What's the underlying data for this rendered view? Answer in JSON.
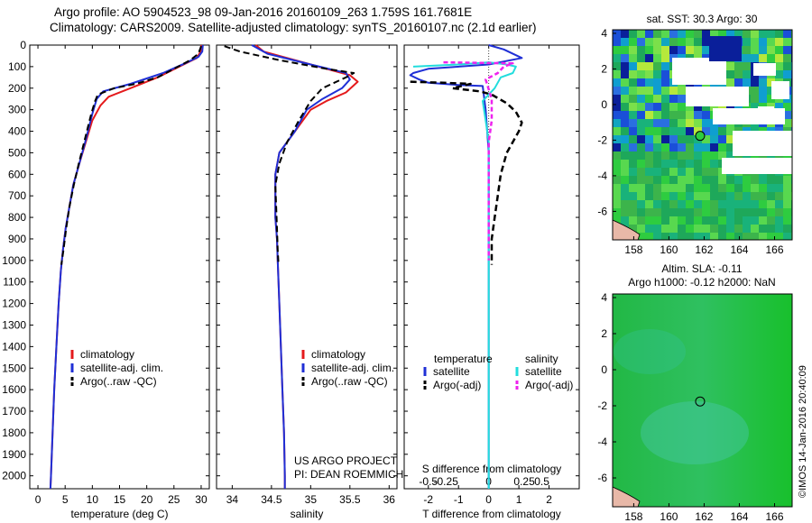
{
  "header": {
    "line1": "Argo profile: AO 5904523_98 09-Jan-2016 20160109_263 1.759S 161.7681E",
    "line2": "Climatology: CARS2009. Satellite-adjusted climatology: synTS_20160107.nc (2.1d earlier)"
  },
  "colors": {
    "climatology": "#e41a1c",
    "satellite": "#1f2fd6",
    "argo": "#000000",
    "sal_sat": "#22dddd",
    "sal_argo": "#ee22ee"
  },
  "depth_axis": {
    "ticks": [
      0,
      100,
      200,
      300,
      400,
      500,
      600,
      700,
      800,
      900,
      1000,
      1100,
      1200,
      1300,
      1400,
      1500,
      1600,
      1700,
      1800,
      1900,
      2000
    ]
  },
  "chart_data": [
    {
      "type": "line",
      "id": "temperature",
      "xlabel": "temperature (deg C)",
      "xlim": [
        -1.5,
        31.5
      ],
      "ylim": [
        0,
        2060
      ],
      "xticks": [
        0,
        5,
        10,
        15,
        20,
        25,
        30
      ],
      "legend": [
        "climatology",
        "satellite-adj. clim.",
        "Argo(..raw -QC)"
      ],
      "series": [
        {
          "name": "climatology",
          "points": [
            [
              30,
              0
            ],
            [
              29.9,
              30
            ],
            [
              29.2,
              60
            ],
            [
              26,
              100
            ],
            [
              22,
              150
            ],
            [
              17,
              200
            ],
            [
              13,
              240
            ],
            [
              11.5,
              280
            ],
            [
              10,
              350
            ],
            [
              8.8,
              450
            ],
            [
              7.6,
              550
            ],
            [
              6.5,
              650
            ],
            [
              5.8,
              750
            ],
            [
              5.1,
              850
            ],
            [
              4.6,
              950
            ],
            [
              4.2,
              1050
            ],
            [
              3.8,
              1200
            ],
            [
              3.4,
              1400
            ],
            [
              3,
              1600
            ],
            [
              2.7,
              1800
            ],
            [
              2.4,
              2000
            ],
            [
              2.3,
              2060
            ]
          ]
        },
        {
          "name": "satellite-adj. clim.",
          "points": [
            [
              30.3,
              0
            ],
            [
              30.2,
              30
            ],
            [
              29.5,
              55
            ],
            [
              27,
              85
            ],
            [
              23,
              130
            ],
            [
              17,
              180
            ],
            [
              12,
              215
            ],
            [
              10.8,
              250
            ],
            [
              10,
              320
            ],
            [
              8.8,
              440
            ],
            [
              7.6,
              550
            ],
            [
              6.5,
              650
            ],
            [
              5.8,
              750
            ],
            [
              5.1,
              850
            ],
            [
              4.6,
              950
            ],
            [
              4.2,
              1050
            ],
            [
              3.8,
              1200
            ],
            [
              3.4,
              1400
            ],
            [
              3,
              1600
            ],
            [
              2.7,
              1800
            ],
            [
              2.4,
              2000
            ],
            [
              2.3,
              2060
            ]
          ]
        },
        {
          "name": "Argo(..raw -QC)",
          "points": [
            [
              30,
              5
            ],
            [
              29.5,
              40
            ],
            [
              28,
              70
            ],
            [
              25,
              110
            ],
            [
              22,
              150
            ],
            [
              18,
              180
            ],
            [
              14,
              200
            ],
            [
              11,
              230
            ],
            [
              10.5,
              260
            ],
            [
              9.8,
              320
            ],
            [
              9,
              400
            ],
            [
              8.5,
              450
            ],
            [
              7.5,
              550
            ],
            [
              6.6,
              650
            ],
            [
              5.8,
              750
            ],
            [
              5.2,
              850
            ],
            [
              4.7,
              950
            ],
            [
              4.3,
              1020
            ]
          ]
        }
      ]
    },
    {
      "type": "line",
      "id": "salinity",
      "xlabel": "salinity",
      "xlim": [
        33.8,
        36.1
      ],
      "ylim": [
        0,
        2060
      ],
      "xticks": [
        34,
        34.5,
        35,
        35.5,
        36
      ],
      "legend": [
        "climatology",
        "satellite-adj. clim.",
        "Argo(..raw -QC)"
      ],
      "series": [
        {
          "name": "climatology",
          "points": [
            [
              34.3,
              0
            ],
            [
              34.4,
              30
            ],
            [
              34.9,
              80
            ],
            [
              35.5,
              140
            ],
            [
              35.6,
              170
            ],
            [
              35.45,
              220
            ],
            [
              35.2,
              260
            ],
            [
              35,
              300
            ],
            [
              34.8,
              400
            ],
            [
              34.6,
              500
            ],
            [
              34.55,
              600
            ],
            [
              34.55,
              700
            ],
            [
              34.55,
              800
            ],
            [
              34.57,
              900
            ],
            [
              34.58,
              1000
            ],
            [
              34.6,
              1200
            ],
            [
              34.62,
              1400
            ],
            [
              34.64,
              1600
            ],
            [
              34.66,
              1800
            ],
            [
              34.67,
              2000
            ],
            [
              34.67,
              2060
            ]
          ]
        },
        {
          "name": "satellite-adj. clim.",
          "points": [
            [
              34.25,
              0
            ],
            [
              34.45,
              40
            ],
            [
              35,
              90
            ],
            [
              35.45,
              130
            ],
            [
              35.5,
              160
            ],
            [
              35.4,
              200
            ],
            [
              35.15,
              250
            ],
            [
              34.95,
              300
            ],
            [
              34.8,
              400
            ],
            [
              34.6,
              500
            ],
            [
              34.55,
              600
            ],
            [
              34.55,
              700
            ],
            [
              34.55,
              800
            ],
            [
              34.57,
              900
            ],
            [
              34.58,
              1000
            ],
            [
              34.6,
              1200
            ],
            [
              34.62,
              1400
            ],
            [
              34.64,
              1600
            ],
            [
              34.66,
              1800
            ],
            [
              34.67,
              2000
            ],
            [
              34.67,
              2060
            ]
          ]
        },
        {
          "name": "Argo(..raw -QC)",
          "points": [
            [
              33.9,
              5
            ],
            [
              34.1,
              30
            ],
            [
              34.6,
              70
            ],
            [
              35.2,
              110
            ],
            [
              35.55,
              130
            ],
            [
              35.45,
              150
            ],
            [
              35.15,
              200
            ],
            [
              35,
              260
            ],
            [
              34.85,
              350
            ],
            [
              34.7,
              450
            ],
            [
              34.6,
              550
            ],
            [
              34.55,
              650
            ],
            [
              34.56,
              750
            ],
            [
              34.57,
              850
            ],
            [
              34.58,
              950
            ],
            [
              34.59,
              1020
            ]
          ]
        }
      ]
    },
    {
      "type": "line",
      "id": "differences",
      "xlabel": "T difference from climatology",
      "xlabel_top": "S difference from climatology",
      "xlim": [
        -2.8,
        3
      ],
      "ylim": [
        0,
        2060
      ],
      "xticks": [
        -2,
        -1,
        0,
        1,
        2
      ],
      "xticks_S": [
        "-0.5",
        "-0.25",
        "0",
        "0.25",
        "0.5"
      ],
      "legend_titles": [
        "temperature",
        "salinity"
      ],
      "legend": [
        "satellite",
        "Argo(-adj)",
        "satellite",
        "Argo(-adj)"
      ],
      "series": [
        {
          "name": "T satellite",
          "points": [
            [
              0,
              0
            ],
            [
              0.5,
              20
            ],
            [
              1.1,
              60
            ],
            [
              0,
              90
            ],
            [
              -2,
              110
            ],
            [
              -2.5,
              130
            ],
            [
              -2.6,
              140
            ],
            [
              -2.3,
              160
            ],
            [
              -2,
              175
            ],
            [
              -1,
              185
            ],
            [
              -0.2,
              190
            ],
            [
              -0.1,
              300
            ],
            [
              0,
              500
            ],
            [
              0,
              800
            ],
            [
              0,
              1200
            ],
            [
              0,
              1600
            ],
            [
              0,
              2060
            ]
          ]
        },
        {
          "name": "T Argo(-adj)",
          "points": [
            [
              -2.6,
              170
            ],
            [
              -1.5,
              175
            ],
            [
              -0.6,
              180
            ],
            [
              -1.2,
              200
            ],
            [
              -0.3,
              215
            ],
            [
              0.1,
              230
            ],
            [
              0.6,
              270
            ],
            [
              0.9,
              310
            ],
            [
              1.1,
              360
            ],
            [
              1.0,
              400
            ],
            [
              0.8,
              450
            ],
            [
              0.6,
              500
            ],
            [
              0.4,
              600
            ],
            [
              0.3,
              700
            ],
            [
              0.2,
              800
            ],
            [
              0.1,
              900
            ],
            [
              0.1,
              1020
            ]
          ]
        },
        {
          "name": "S satellite",
          "points": [
            [
              -2.5,
              100
            ],
            [
              -1,
              90
            ],
            [
              0,
              80
            ],
            [
              0.6,
              90
            ],
            [
              0.9,
              100
            ],
            [
              0.8,
              130
            ],
            [
              0.4,
              150
            ],
            [
              0.2,
              200
            ],
            [
              -0.2,
              260
            ],
            [
              -0.1,
              350
            ],
            [
              0,
              450
            ],
            [
              0,
              600
            ],
            [
              0,
              900
            ],
            [
              0,
              1300
            ],
            [
              0,
              1700
            ],
            [
              0,
              2060
            ]
          ]
        },
        {
          "name": "S Argo(-adj)",
          "points": [
            [
              -1.5,
              80
            ],
            [
              0.8,
              85
            ],
            [
              0.5,
              100
            ],
            [
              0.3,
              130
            ],
            [
              -0.1,
              160
            ],
            [
              0.1,
              250
            ],
            [
              0.1,
              350
            ],
            [
              0,
              450
            ],
            [
              0,
              600
            ],
            [
              0,
              800
            ],
            [
              0,
              1000
            ]
          ]
        }
      ]
    },
    {
      "type": "heatmap",
      "id": "sst-map",
      "title": "sat. SST: 30.3 Argo: 30",
      "xlim": [
        156.8,
        167
      ],
      "ylim": [
        -7.6,
        4.2
      ],
      "xticks": [
        158,
        160,
        162,
        164,
        166
      ],
      "yticks": [
        4,
        2,
        0,
        -2,
        -4,
        -6
      ],
      "argo_location": [
        161.77,
        -1.76
      ]
    },
    {
      "type": "heatmap",
      "id": "sla-map",
      "title_line1": "Altim. SLA: -0.11",
      "title_line2": "Argo h1000: -0.12 h2000: NaN",
      "xlim": [
        156.8,
        167
      ],
      "ylim": [
        -7.6,
        4.2
      ],
      "xticks": [
        158,
        160,
        162,
        164,
        166
      ],
      "yticks": [
        4,
        2,
        0,
        -2,
        -4,
        -6
      ],
      "argo_location": [
        161.77,
        -1.76
      ]
    }
  ],
  "labels": {
    "project_line1": "US ARGO PROJECT",
    "project_line2": "PI: DEAN ROEMMICH",
    "credit": "©IMOS 14-Jan-2016 20:40:09"
  }
}
